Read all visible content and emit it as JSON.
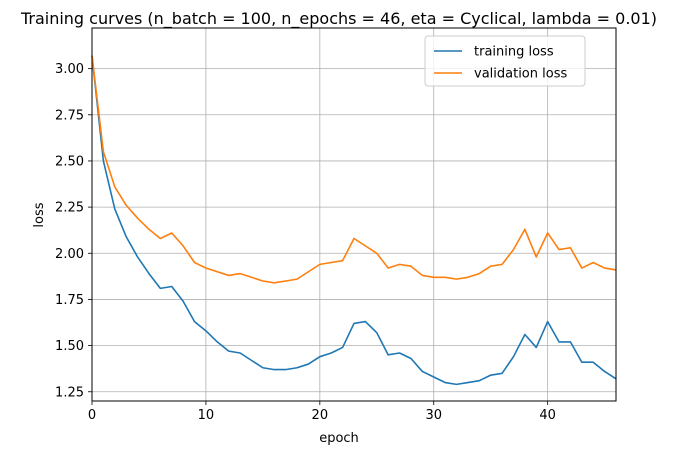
{
  "chart_data": {
    "type": "line",
    "title": "Training curves (n_batch = 100, n_epochs = 46, eta = Cyclical, lambda = 0.01)",
    "xlabel": "epoch",
    "ylabel": "loss",
    "xlim": [
      0,
      46
    ],
    "ylim": [
      1.2,
      3.22
    ],
    "xticks": [
      0,
      10,
      20,
      30,
      40
    ],
    "yticks": [
      1.25,
      1.5,
      1.75,
      2.0,
      2.25,
      2.5,
      2.75,
      3.0
    ],
    "grid": true,
    "legend_position": "top-right",
    "x": [
      0,
      1,
      2,
      3,
      4,
      5,
      6,
      7,
      8,
      9,
      10,
      11,
      12,
      13,
      14,
      15,
      16,
      17,
      18,
      19,
      20,
      21,
      22,
      23,
      24,
      25,
      26,
      27,
      28,
      29,
      30,
      31,
      32,
      33,
      34,
      35,
      36,
      37,
      38,
      39,
      40,
      41,
      42,
      43,
      44,
      45,
      46
    ],
    "series": [
      {
        "name": "training loss",
        "color": "#1f77b4",
        "values": [
          3.07,
          2.5,
          2.24,
          2.09,
          1.98,
          1.89,
          1.81,
          1.82,
          1.74,
          1.63,
          1.58,
          1.52,
          1.47,
          1.46,
          1.42,
          1.38,
          1.37,
          1.37,
          1.38,
          1.4,
          1.44,
          1.46,
          1.49,
          1.62,
          1.63,
          1.57,
          1.45,
          1.46,
          1.43,
          1.36,
          1.33,
          1.3,
          1.29,
          1.3,
          1.31,
          1.34,
          1.35,
          1.44,
          1.56,
          1.49,
          1.63,
          1.52,
          1.52,
          1.41,
          1.41,
          1.36,
          1.32
        ]
      },
      {
        "name": "validation loss",
        "color": "#ff7f0e",
        "values": [
          3.07,
          2.55,
          2.36,
          2.26,
          2.19,
          2.13,
          2.08,
          2.11,
          2.04,
          1.95,
          1.92,
          1.9,
          1.88,
          1.89,
          1.87,
          1.85,
          1.84,
          1.85,
          1.86,
          1.9,
          1.94,
          1.95,
          1.96,
          2.08,
          2.04,
          2.0,
          1.92,
          1.94,
          1.93,
          1.88,
          1.87,
          1.87,
          1.86,
          1.87,
          1.89,
          1.93,
          1.94,
          2.02,
          2.13,
          1.98,
          2.11,
          2.02,
          2.03,
          1.92,
          1.95,
          1.92,
          1.91
        ]
      }
    ]
  }
}
